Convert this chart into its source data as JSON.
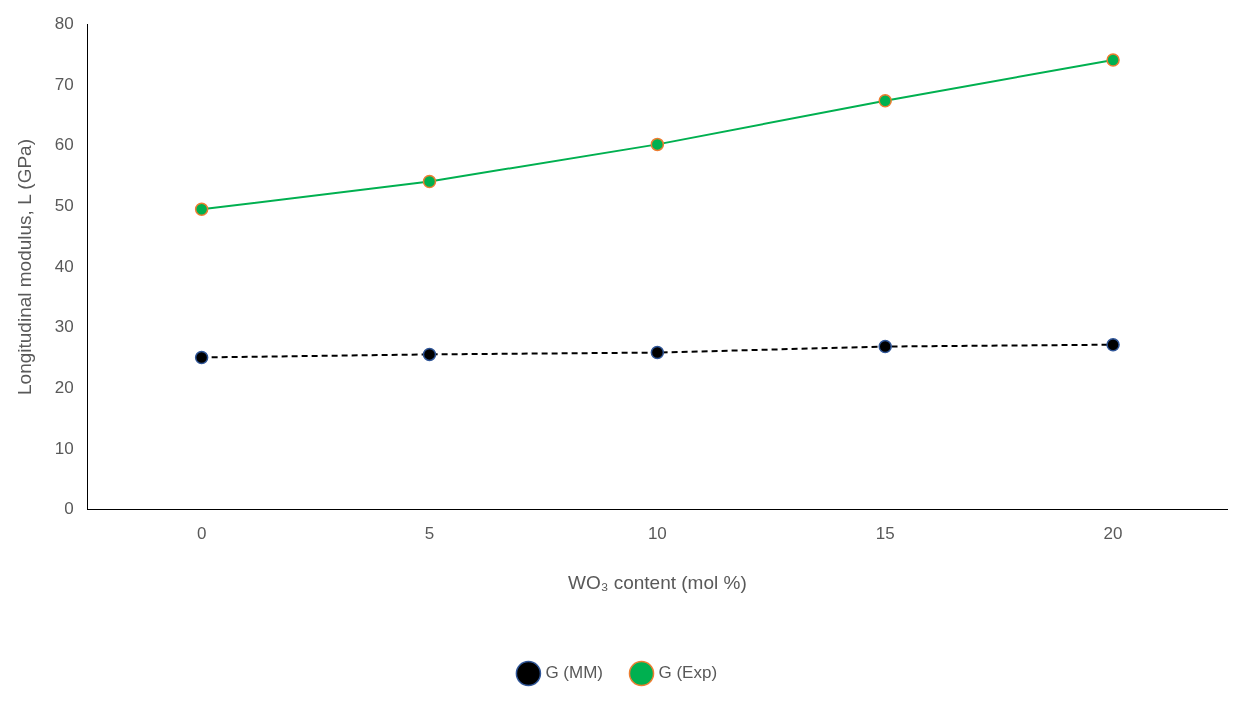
{
  "chart_data": {
    "type": "line",
    "xlabel": "WO₃ content (mol %)",
    "ylabel": "Longitudinal modulus, L (GPa)",
    "categories": [
      "0",
      "5",
      "10",
      "15",
      "20"
    ],
    "ylim": [
      0,
      80
    ],
    "yticks": [
      0,
      10,
      20,
      30,
      40,
      50,
      60,
      70,
      80
    ],
    "grid": false,
    "legend": "bottom",
    "marker": "circle",
    "series": [
      {
        "name": "G (MM)",
        "color": "#000000",
        "line_style": "dashed",
        "values": [
          25.1,
          25.6,
          25.9,
          26.9,
          27.2
        ]
      },
      {
        "name": "G (Exp)",
        "color": "#00b050",
        "line_style": "solid",
        "values": [
          49.5,
          54.1,
          60.2,
          67.4,
          74.1
        ]
      }
    ]
  }
}
